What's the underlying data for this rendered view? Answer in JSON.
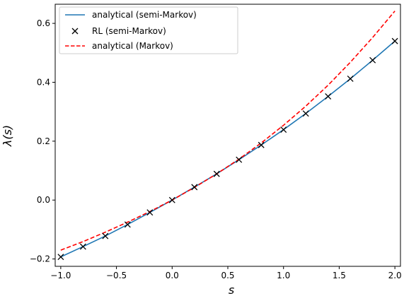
{
  "chart_data": {
    "type": "line",
    "title": "",
    "xlabel": "s",
    "ylabel": "λ(s)",
    "xlim": [
      -1.05,
      2.05
    ],
    "ylim": [
      -0.225,
      0.665
    ],
    "grid": false,
    "legend_position": "top-left",
    "x_ticks": [
      -1.0,
      -0.5,
      0.0,
      0.5,
      1.0,
      1.5,
      2.0
    ],
    "x_tick_labels": [
      "−1.0",
      "−0.5",
      "0.0",
      "0.5",
      "1.0",
      "1.5",
      "2.0"
    ],
    "y_ticks": [
      -0.2,
      0.0,
      0.2,
      0.4,
      0.6
    ],
    "y_tick_labels": [
      "−0.2",
      "0.0",
      "0.2",
      "0.4",
      "0.6"
    ],
    "series": [
      {
        "name": "analytical (semi-Markov)",
        "style": "solid",
        "color": "#1f77b4",
        "x": [
          -1.0,
          -0.8,
          -0.6,
          -0.4,
          -0.2,
          0.0,
          0.2,
          0.4,
          0.6,
          0.8,
          1.0,
          1.2,
          1.4,
          1.6,
          1.8,
          2.0
        ],
        "y": [
          -0.193,
          -0.158,
          -0.122,
          -0.083,
          -0.042,
          0.0,
          0.044,
          0.089,
          0.137,
          0.187,
          0.239,
          0.294,
          0.352,
          0.412,
          0.475,
          0.54
        ]
      },
      {
        "name": "RL (semi-Markov)",
        "style": "marker-x",
        "color": "#000000",
        "x": [
          -1.0,
          -0.8,
          -0.6,
          -0.4,
          -0.2,
          0.0,
          0.2,
          0.4,
          0.6,
          0.8,
          1.0,
          1.2,
          1.4,
          1.6,
          1.8,
          2.0
        ],
        "y": [
          -0.193,
          -0.158,
          -0.122,
          -0.083,
          -0.042,
          0.0,
          0.044,
          0.089,
          0.137,
          0.187,
          0.239,
          0.294,
          0.352,
          0.412,
          0.475,
          0.54
        ]
      },
      {
        "name": "analytical (Markov)",
        "style": "dashed",
        "color": "#ff0000",
        "x": [
          -1.0,
          -0.8,
          -0.6,
          -0.4,
          -0.2,
          0.0,
          0.2,
          0.4,
          0.6,
          0.8,
          1.0,
          1.2,
          1.4,
          1.6,
          1.8,
          2.0
        ],
        "y": [
          -0.17,
          -0.141,
          -0.109,
          -0.075,
          -0.039,
          0.0,
          0.043,
          0.089,
          0.139,
          0.194,
          0.254,
          0.319,
          0.39,
          0.468,
          0.552,
          0.642
        ]
      }
    ]
  }
}
